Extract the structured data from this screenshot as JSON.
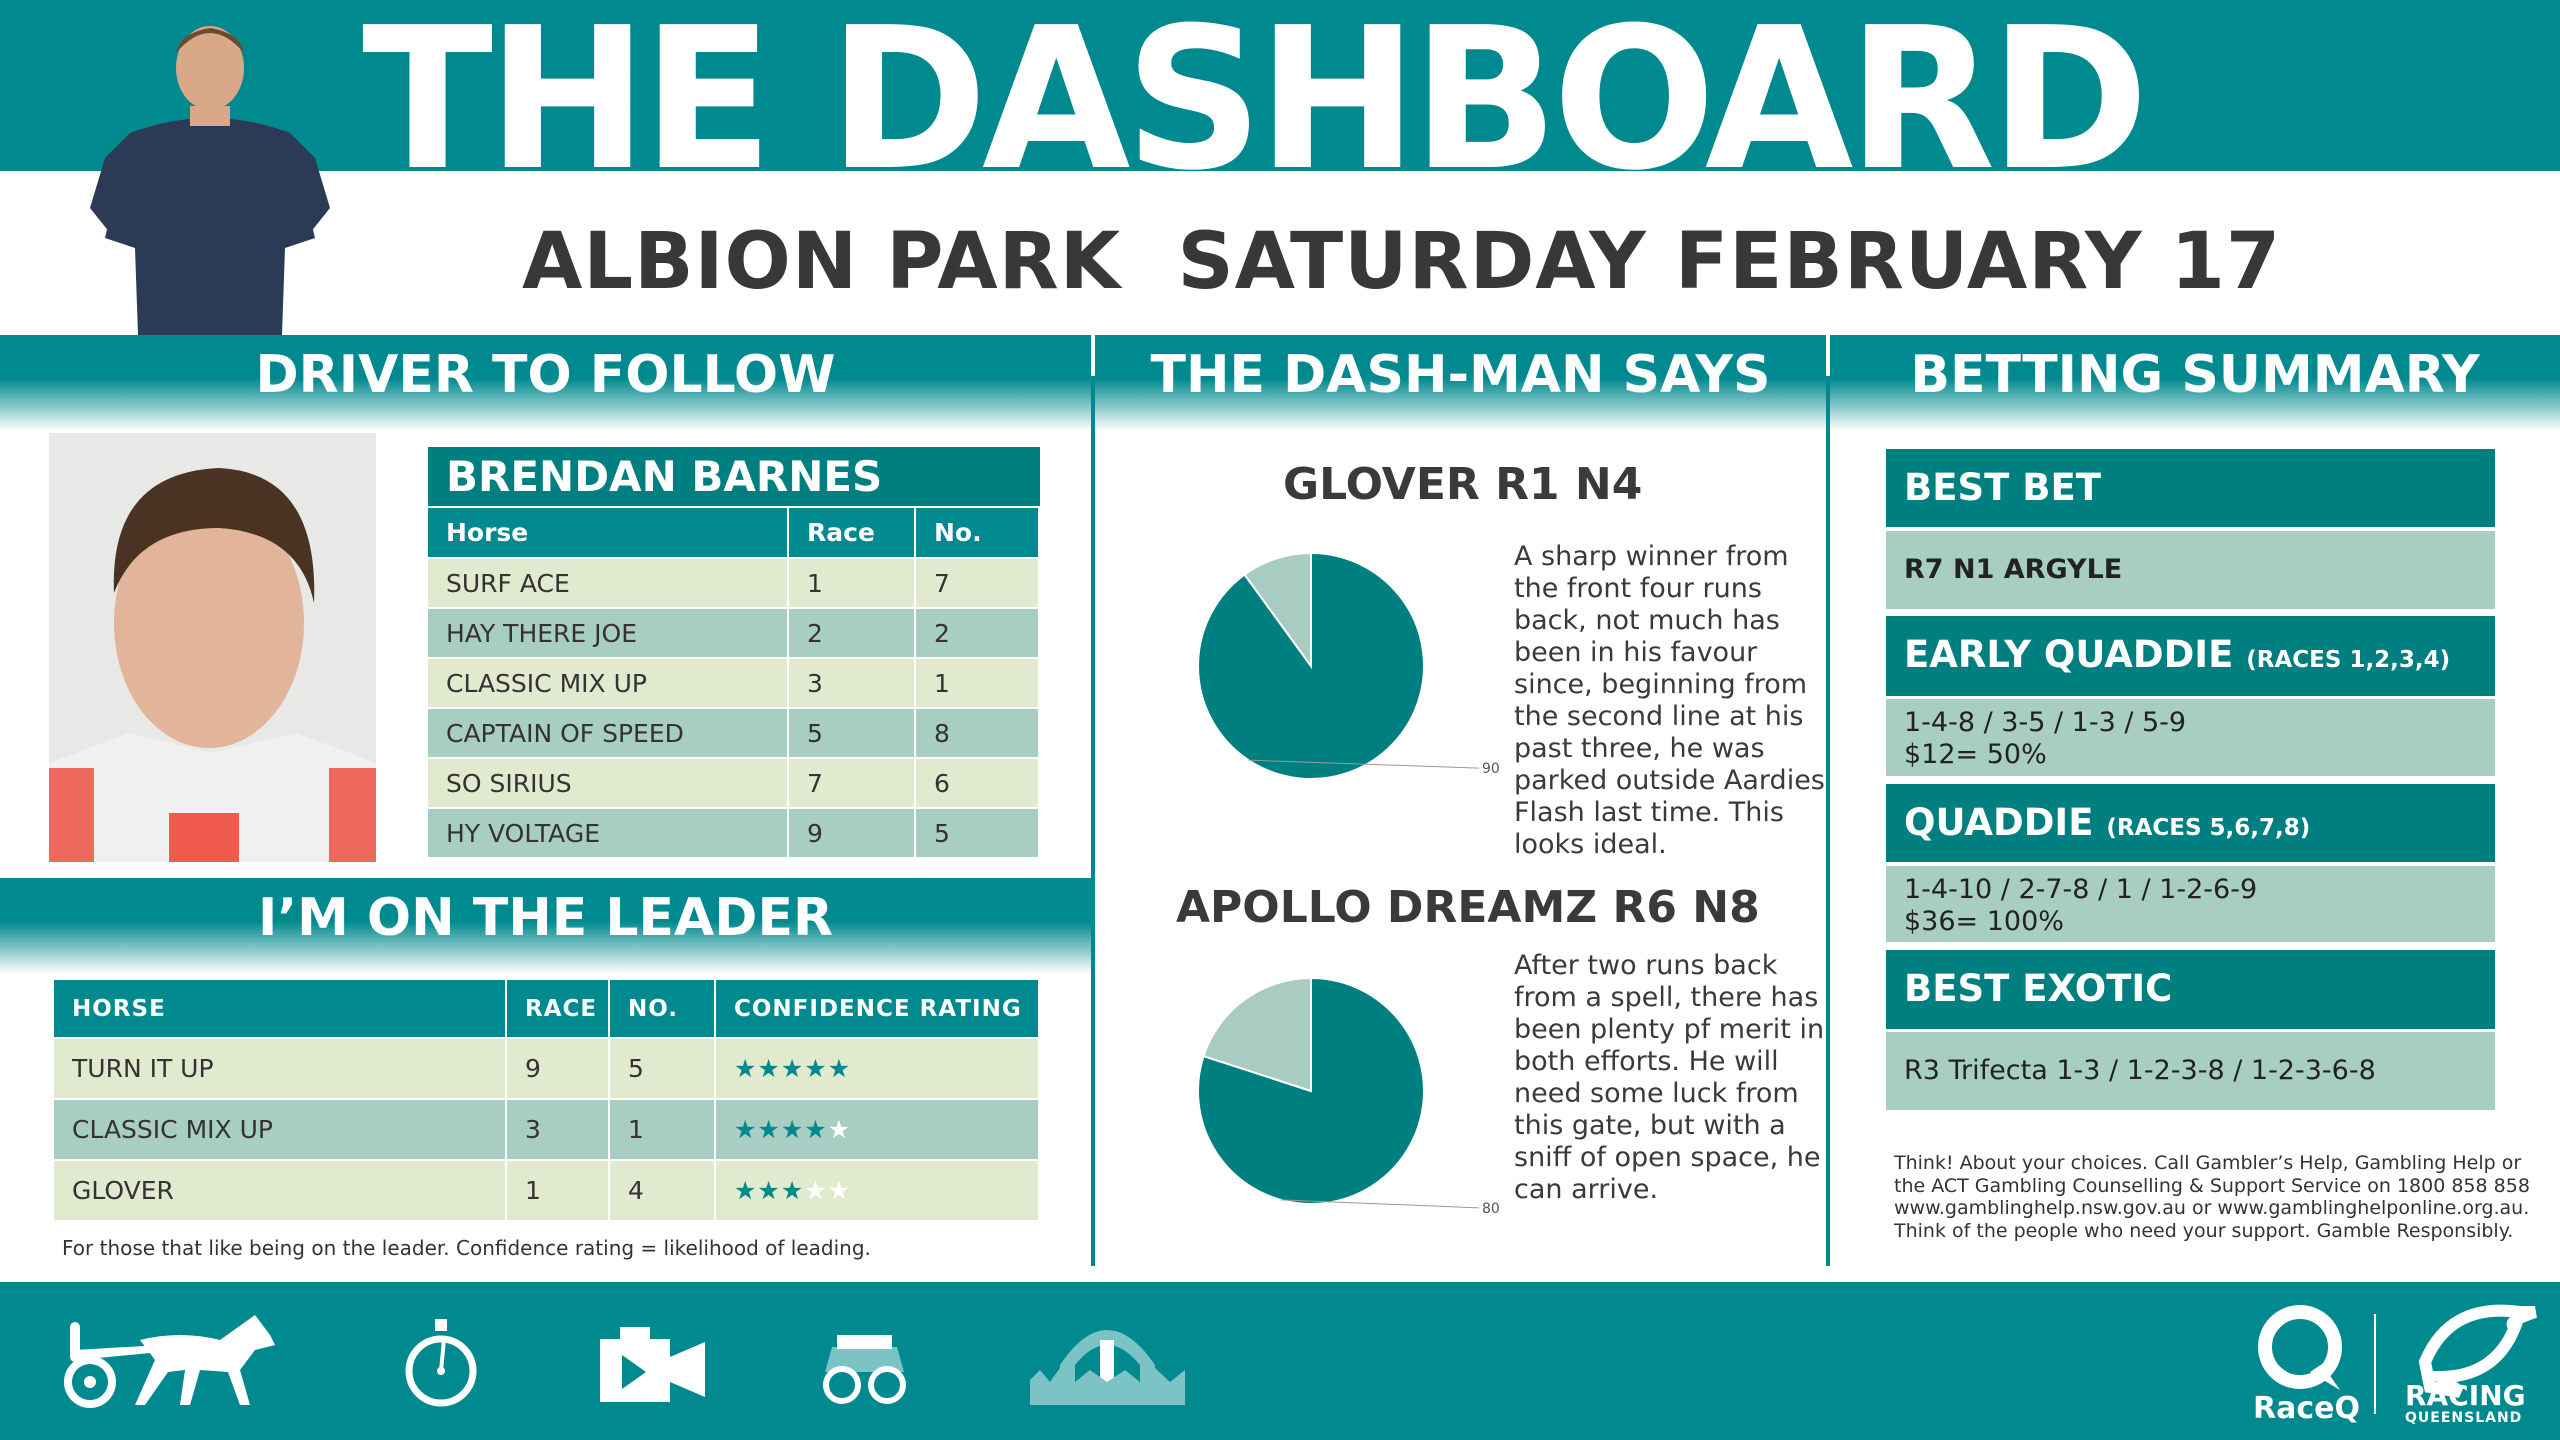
{
  "header": {
    "title": "THE DASHBOARD",
    "subtitle": "ALBION PARK  SATURDAY FEBRUARY 17"
  },
  "sections": {
    "driver": "DRIVER TO FOLLOW",
    "dashman": "THE DASH-MAN SAYS",
    "betting": "BETTING SUMMARY",
    "leader": "I’M ON THE LEADER"
  },
  "driver": {
    "name": "BRENDAN BARNES",
    "columns": [
      "Horse",
      "Race",
      "No."
    ],
    "rows": [
      [
        "SURF ACE",
        "1",
        "7"
      ],
      [
        "HAY THERE JOE",
        "2",
        "2"
      ],
      [
        "CLASSIC MIX UP",
        "3",
        "1"
      ],
      [
        "CAPTAIN OF SPEED",
        "5",
        "8"
      ],
      [
        "SO SIRIUS",
        "7",
        "6"
      ],
      [
        "HY VOLTAGE",
        "9",
        "5"
      ]
    ]
  },
  "leader": {
    "columns": [
      "HORSE",
      "RACE",
      "NO.",
      "CONFIDENCE RATING"
    ],
    "rows": [
      {
        "horse": "TURN IT UP",
        "race": "9",
        "no": "5",
        "rating": 5
      },
      {
        "horse": "CLASSIC MIX UP",
        "race": "3",
        "no": "1",
        "rating": 4
      },
      {
        "horse": "GLOVER",
        "race": "1",
        "no": "4",
        "rating": 3
      }
    ],
    "rating_max": 5,
    "footnote": "For those that like being on the leader.  Confidence rating = likelihood of leading."
  },
  "dashman": {
    "picks": [
      {
        "name": "GLOVER R1 N4",
        "text": "A sharp winner from the front four runs back, not much has been in his favour since, beginning from the second line at his past three, he was parked outside Aardies Flash last time. This looks ideal."
      },
      {
        "name": "APOLLO DREAMZ R6 N8",
        "text": "After two runs back from a spell, there has been plenty pf merit in both efforts. He will need some luck from this gate, but with a sniff of open space, he can arrive."
      }
    ]
  },
  "chart_data": [
    {
      "type": "pie",
      "values": [
        90,
        10
      ],
      "labels": [
        "90%",
        ""
      ],
      "colors": [
        "#007f80",
        "#a8ccc1"
      ]
    },
    {
      "type": "pie",
      "values": [
        80,
        20
      ],
      "labels": [
        "80%",
        ""
      ],
      "colors": [
        "#007f80",
        "#a8ccc1"
      ]
    }
  ],
  "betting": {
    "best_bet": {
      "title": "BEST BET",
      "value": "R7 N1 ARGYLE"
    },
    "early_quaddie": {
      "title": "EARLY QUADDIE",
      "sub": "(RACES 1,2,3,4)",
      "line1": "1-4-8 / 3-5 / 1-3 / 5-9",
      "line2": "$12= 50%"
    },
    "quaddie": {
      "title": "QUADDIE",
      "sub": "(RACES 5,6,7,8)",
      "line1": "1-4-10 / 2-7-8 / 1 / 1-2-6-9",
      "line2": "$36= 100%"
    },
    "best_exotic": {
      "title": "BEST EXOTIC",
      "value": "R3 Trifecta 1-3 / 1-2-3-8 / 1-2-3-6-8"
    },
    "disclaimer": "Think! About your choices. Call Gambler’s Help, Gambling Help or the ACT Gambling Counselling & Support Service on 1800 858 858 www.gamblinghelp.nsw.gov.au or www.gamblinghelponline.org.au. Think of the people who need your support. Gamble Responsibly."
  },
  "footer": {
    "icons": [
      "harness-racing-icon",
      "stopwatch-icon",
      "video-camera-icon",
      "binoculars-icon",
      "horseshoe-gate-icon"
    ],
    "logos": {
      "raceq": "RaceQ",
      "rq1": "RACING",
      "rq2": "QUEENSLAND"
    }
  },
  "colors": {
    "teal": "#00898e",
    "teal_dark": "#007f80",
    "row_light": "#e1e9cf",
    "row_mid": "#a8cdc3"
  }
}
